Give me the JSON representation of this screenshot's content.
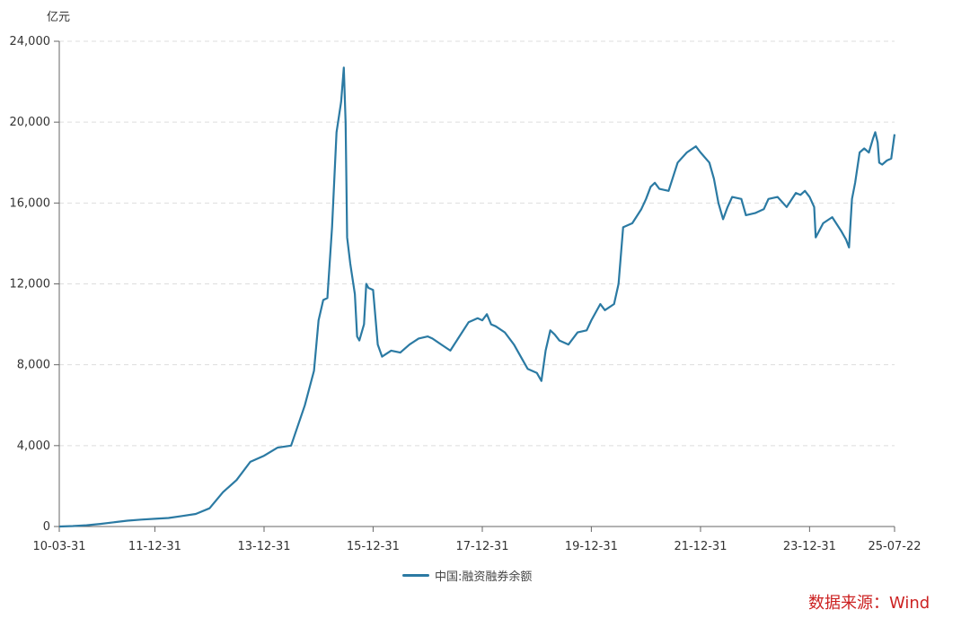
{
  "unit_label": "亿元",
  "source_label": "数据来源：Wind",
  "colors": {
    "line": "#2b7aa3",
    "source": "#cc2222",
    "grid": "#dddddd",
    "axis": "#666666"
  },
  "chart_data": {
    "type": "line",
    "title": "",
    "xlabel": "",
    "ylabel": "亿元",
    "ylim": [
      0,
      24000
    ],
    "yticks": [
      0,
      4000,
      8000,
      12000,
      16000,
      20000,
      24000
    ],
    "ytick_labels": [
      "0",
      "4,000",
      "8,000",
      "12,000",
      "16,000",
      "20,000",
      "24,000"
    ],
    "xrange": [
      "2010-03-31",
      "2025-07-22"
    ],
    "xticks": [
      "2010-03-31",
      "2011-12-31",
      "2013-12-31",
      "2015-12-31",
      "2017-12-31",
      "2019-12-31",
      "2021-12-31",
      "2023-12-31",
      "2025-07-22"
    ],
    "xtick_labels": [
      "10-03-31",
      "11-12-31",
      "13-12-31",
      "15-12-31",
      "17-12-31",
      "19-12-31",
      "21-12-31",
      "23-12-31",
      "25-07-22"
    ],
    "grid": "horizontal-dashed",
    "legend_position": "bottom-center",
    "series": [
      {
        "name": "中国:融资融券余额",
        "points": [
          [
            "2010-03-31",
            0
          ],
          [
            "2010-06-30",
            20
          ],
          [
            "2010-09-30",
            60
          ],
          [
            "2010-12-31",
            130
          ],
          [
            "2011-03-31",
            210
          ],
          [
            "2011-06-30",
            290
          ],
          [
            "2011-09-30",
            340
          ],
          [
            "2011-12-31",
            380
          ],
          [
            "2012-03-31",
            420
          ],
          [
            "2012-06-30",
            520
          ],
          [
            "2012-09-30",
            620
          ],
          [
            "2012-12-31",
            900
          ],
          [
            "2013-03-31",
            1700
          ],
          [
            "2013-06-30",
            2300
          ],
          [
            "2013-09-30",
            3200
          ],
          [
            "2013-12-31",
            3500
          ],
          [
            "2014-03-31",
            3900
          ],
          [
            "2014-06-30",
            4000
          ],
          [
            "2014-09-30",
            6000
          ],
          [
            "2014-11-30",
            7700
          ],
          [
            "2014-12-31",
            10200
          ],
          [
            "2015-01-31",
            11200
          ],
          [
            "2015-02-28",
            11300
          ],
          [
            "2015-03-31",
            14800
          ],
          [
            "2015-04-30",
            19500
          ],
          [
            "2015-05-31",
            21000
          ],
          [
            "2015-06-18",
            22700
          ],
          [
            "2015-06-30",
            20000
          ],
          [
            "2015-07-10",
            14300
          ],
          [
            "2015-07-31",
            13000
          ],
          [
            "2015-08-31",
            11500
          ],
          [
            "2015-09-15",
            9400
          ],
          [
            "2015-09-30",
            9200
          ],
          [
            "2015-10-31",
            10000
          ],
          [
            "2015-11-15",
            12000
          ],
          [
            "2015-11-30",
            11800
          ],
          [
            "2015-12-31",
            11700
          ],
          [
            "2016-01-31",
            9000
          ],
          [
            "2016-02-29",
            8400
          ],
          [
            "2016-04-30",
            8700
          ],
          [
            "2016-06-30",
            8600
          ],
          [
            "2016-08-31",
            9000
          ],
          [
            "2016-10-31",
            9300
          ],
          [
            "2016-12-31",
            9400
          ],
          [
            "2017-01-31",
            9300
          ],
          [
            "2017-03-31",
            9000
          ],
          [
            "2017-05-31",
            8700
          ],
          [
            "2017-07-31",
            9400
          ],
          [
            "2017-09-30",
            10100
          ],
          [
            "2017-11-30",
            10300
          ],
          [
            "2017-12-31",
            10200
          ],
          [
            "2018-01-31",
            10500
          ],
          [
            "2018-02-28",
            10000
          ],
          [
            "2018-03-31",
            9900
          ],
          [
            "2018-05-31",
            9600
          ],
          [
            "2018-07-31",
            9000
          ],
          [
            "2018-09-30",
            8200
          ],
          [
            "2018-10-31",
            7800
          ],
          [
            "2018-12-31",
            7600
          ],
          [
            "2019-01-31",
            7200
          ],
          [
            "2019-02-28",
            8700
          ],
          [
            "2019-03-31",
            9700
          ],
          [
            "2019-04-30",
            9500
          ],
          [
            "2019-05-31",
            9200
          ],
          [
            "2019-07-31",
            9000
          ],
          [
            "2019-09-30",
            9600
          ],
          [
            "2019-11-30",
            9700
          ],
          [
            "2019-12-31",
            10200
          ],
          [
            "2020-02-29",
            11000
          ],
          [
            "2020-03-31",
            10700
          ],
          [
            "2020-05-31",
            11000
          ],
          [
            "2020-06-30",
            12000
          ],
          [
            "2020-07-31",
            14800
          ],
          [
            "2020-09-30",
            15000
          ],
          [
            "2020-11-30",
            15700
          ],
          [
            "2020-12-31",
            16200
          ],
          [
            "2021-01-31",
            16800
          ],
          [
            "2021-02-28",
            17000
          ],
          [
            "2021-03-31",
            16700
          ],
          [
            "2021-05-31",
            16600
          ],
          [
            "2021-07-31",
            18000
          ],
          [
            "2021-09-30",
            18500
          ],
          [
            "2021-11-30",
            18800
          ],
          [
            "2021-12-31",
            18500
          ],
          [
            "2022-02-28",
            18000
          ],
          [
            "2022-03-31",
            17200
          ],
          [
            "2022-04-30",
            16000
          ],
          [
            "2022-05-31",
            15200
          ],
          [
            "2022-06-30",
            15800
          ],
          [
            "2022-07-31",
            16300
          ],
          [
            "2022-09-30",
            16200
          ],
          [
            "2022-10-31",
            15400
          ],
          [
            "2022-12-31",
            15500
          ],
          [
            "2023-02-28",
            15700
          ],
          [
            "2023-03-31",
            16200
          ],
          [
            "2023-05-31",
            16300
          ],
          [
            "2023-07-31",
            15800
          ],
          [
            "2023-09-30",
            16500
          ],
          [
            "2023-10-31",
            16400
          ],
          [
            "2023-11-30",
            16600
          ],
          [
            "2023-12-31",
            16300
          ],
          [
            "2024-01-31",
            15800
          ],
          [
            "2024-02-10",
            14300
          ],
          [
            "2024-03-31",
            15000
          ],
          [
            "2024-05-31",
            15300
          ],
          [
            "2024-07-31",
            14600
          ],
          [
            "2024-08-31",
            14200
          ],
          [
            "2024-09-20",
            13800
          ],
          [
            "2024-10-10",
            16200
          ],
          [
            "2024-10-31",
            17000
          ],
          [
            "2024-11-30",
            18500
          ],
          [
            "2024-12-31",
            18700
          ],
          [
            "2025-01-31",
            18500
          ],
          [
            "2025-02-28",
            19200
          ],
          [
            "2025-03-15",
            19500
          ],
          [
            "2025-03-31",
            19000
          ],
          [
            "2025-04-10",
            18000
          ],
          [
            "2025-04-30",
            17900
          ],
          [
            "2025-05-31",
            18100
          ],
          [
            "2025-06-30",
            18200
          ],
          [
            "2025-07-22",
            19400
          ]
        ]
      }
    ]
  }
}
